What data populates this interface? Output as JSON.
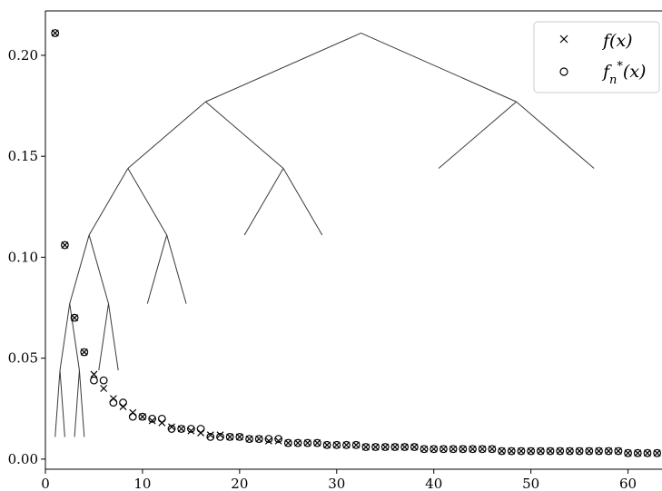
{
  "chart_data": {
    "type": "scatter",
    "title": "",
    "xlabel": "",
    "ylabel": "",
    "xlim": [
      0,
      63.5
    ],
    "ylim": [
      -0.005,
      0.222
    ],
    "xticks": [
      0,
      10,
      20,
      30,
      40,
      50,
      60
    ],
    "yticks": [
      0.0,
      0.05,
      0.1,
      0.15,
      0.2
    ],
    "xtick_labels": [
      "0",
      "10",
      "20",
      "30",
      "40",
      "50",
      "60"
    ],
    "ytick_labels": [
      "0.00",
      "0.05",
      "0.10",
      "0.15",
      "0.20"
    ],
    "grid": false,
    "legend_position": "top-right",
    "series": [
      {
        "name": "f(x)",
        "marker": "x",
        "points": [
          [
            1,
            0.211
          ],
          [
            2,
            0.106
          ],
          [
            3,
            0.07
          ],
          [
            4,
            0.053
          ],
          [
            5,
            0.042
          ],
          [
            6,
            0.035
          ],
          [
            7,
            0.03
          ],
          [
            8,
            0.026
          ],
          [
            9,
            0.023
          ],
          [
            10,
            0.021
          ],
          [
            11,
            0.019
          ],
          [
            12,
            0.018
          ],
          [
            13,
            0.016
          ],
          [
            14,
            0.015
          ],
          [
            15,
            0.014
          ],
          [
            16,
            0.013
          ],
          [
            17,
            0.012
          ],
          [
            18,
            0.012
          ],
          [
            19,
            0.011
          ],
          [
            20,
            0.011
          ],
          [
            21,
            0.01
          ],
          [
            22,
            0.01
          ],
          [
            23,
            0.009
          ],
          [
            24,
            0.009
          ],
          [
            25,
            0.008
          ],
          [
            26,
            0.008
          ],
          [
            27,
            0.008
          ],
          [
            28,
            0.008
          ],
          [
            29,
            0.007
          ],
          [
            30,
            0.007
          ],
          [
            31,
            0.007
          ],
          [
            32,
            0.007
          ],
          [
            33,
            0.006
          ],
          [
            34,
            0.006
          ],
          [
            35,
            0.006
          ],
          [
            36,
            0.006
          ],
          [
            37,
            0.006
          ],
          [
            38,
            0.006
          ],
          [
            39,
            0.005
          ],
          [
            40,
            0.005
          ],
          [
            41,
            0.005
          ],
          [
            42,
            0.005
          ],
          [
            43,
            0.005
          ],
          [
            44,
            0.005
          ],
          [
            45,
            0.005
          ],
          [
            46,
            0.005
          ],
          [
            47,
            0.004
          ],
          [
            48,
            0.004
          ],
          [
            49,
            0.004
          ],
          [
            50,
            0.004
          ],
          [
            51,
            0.004
          ],
          [
            52,
            0.004
          ],
          [
            53,
            0.004
          ],
          [
            54,
            0.004
          ],
          [
            55,
            0.004
          ],
          [
            56,
            0.004
          ],
          [
            57,
            0.004
          ],
          [
            58,
            0.004
          ],
          [
            59,
            0.004
          ],
          [
            60,
            0.003
          ],
          [
            61,
            0.003
          ],
          [
            62,
            0.003
          ],
          [
            63,
            0.003
          ]
        ]
      },
      {
        "name": "f*_n(x)",
        "marker": "o",
        "points": [
          [
            1,
            0.211
          ],
          [
            2,
            0.106
          ],
          [
            3,
            0.07
          ],
          [
            4,
            0.053
          ],
          [
            5,
            0.039
          ],
          [
            6,
            0.039
          ],
          [
            7,
            0.028
          ],
          [
            8,
            0.028
          ],
          [
            9,
            0.021
          ],
          [
            10,
            0.021
          ],
          [
            11,
            0.02
          ],
          [
            12,
            0.02
          ],
          [
            13,
            0.015
          ],
          [
            14,
            0.015
          ],
          [
            15,
            0.015
          ],
          [
            16,
            0.015
          ],
          [
            17,
            0.011
          ],
          [
            18,
            0.011
          ],
          [
            19,
            0.011
          ],
          [
            20,
            0.011
          ],
          [
            21,
            0.01
          ],
          [
            22,
            0.01
          ],
          [
            23,
            0.01
          ],
          [
            24,
            0.01
          ],
          [
            25,
            0.008
          ],
          [
            26,
            0.008
          ],
          [
            27,
            0.008
          ],
          [
            28,
            0.008
          ],
          [
            29,
            0.007
          ],
          [
            30,
            0.007
          ],
          [
            31,
            0.007
          ],
          [
            32,
            0.007
          ],
          [
            33,
            0.006
          ],
          [
            34,
            0.006
          ],
          [
            35,
            0.006
          ],
          [
            36,
            0.006
          ],
          [
            37,
            0.006
          ],
          [
            38,
            0.006
          ],
          [
            39,
            0.005
          ],
          [
            40,
            0.005
          ],
          [
            41,
            0.005
          ],
          [
            42,
            0.005
          ],
          [
            43,
            0.005
          ],
          [
            44,
            0.005
          ],
          [
            45,
            0.005
          ],
          [
            46,
            0.005
          ],
          [
            47,
            0.004
          ],
          [
            48,
            0.004
          ],
          [
            49,
            0.004
          ],
          [
            50,
            0.004
          ],
          [
            51,
            0.004
          ],
          [
            52,
            0.004
          ],
          [
            53,
            0.004
          ],
          [
            54,
            0.004
          ],
          [
            55,
            0.004
          ],
          [
            56,
            0.004
          ],
          [
            57,
            0.004
          ],
          [
            58,
            0.004
          ],
          [
            59,
            0.004
          ],
          [
            60,
            0.003
          ],
          [
            61,
            0.003
          ],
          [
            62,
            0.003
          ],
          [
            63,
            0.003
          ]
        ]
      }
    ],
    "tree_overlay": {
      "nodes": [
        {
          "id": "root",
          "x": 32.5,
          "y": 0.211
        },
        {
          "id": "a",
          "x": 16.5,
          "y": 0.177
        },
        {
          "id": "b",
          "x": 48.5,
          "y": 0.177
        },
        {
          "id": "c",
          "x": 8.5,
          "y": 0.144
        },
        {
          "id": "d",
          "x": 24.5,
          "y": 0.144
        },
        {
          "id": "e",
          "x": 4.5,
          "y": 0.111
        },
        {
          "id": "f",
          "x": 12.5,
          "y": 0.111
        },
        {
          "id": "g",
          "x": 2.5,
          "y": 0.077
        },
        {
          "id": "h",
          "x": 6.5,
          "y": 0.077
        },
        {
          "id": "i",
          "x": 1.5,
          "y": 0.044
        },
        {
          "id": "j",
          "x": 3.5,
          "y": 0.044
        },
        {
          "id": "bL",
          "x": 40.5,
          "y": 0.144
        },
        {
          "id": "bR",
          "x": 56.5,
          "y": 0.144
        },
        {
          "id": "dL",
          "x": 20.5,
          "y": 0.111
        },
        {
          "id": "dR",
          "x": 28.5,
          "y": 0.111
        },
        {
          "id": "fL",
          "x": 10.5,
          "y": 0.077
        },
        {
          "id": "fR",
          "x": 14.5,
          "y": 0.077
        },
        {
          "id": "hL",
          "x": 5.5,
          "y": 0.044
        },
        {
          "id": "hR",
          "x": 7.5,
          "y": 0.044
        },
        {
          "id": "iL",
          "x": 1,
          "y": 0.011
        },
        {
          "id": "iR",
          "x": 2,
          "y": 0.011
        },
        {
          "id": "jL",
          "x": 3,
          "y": 0.011
        },
        {
          "id": "jR",
          "x": 4,
          "y": 0.011
        }
      ],
      "edges": [
        [
          "root",
          "a"
        ],
        [
          "root",
          "b"
        ],
        [
          "a",
          "c"
        ],
        [
          "a",
          "d"
        ],
        [
          "b",
          "bL"
        ],
        [
          "b",
          "bR"
        ],
        [
          "c",
          "e"
        ],
        [
          "c",
          "f"
        ],
        [
          "d",
          "dL"
        ],
        [
          "d",
          "dR"
        ],
        [
          "e",
          "g"
        ],
        [
          "e",
          "h"
        ],
        [
          "f",
          "fL"
        ],
        [
          "f",
          "fR"
        ],
        [
          "g",
          "i"
        ],
        [
          "g",
          "j"
        ],
        [
          "h",
          "hL"
        ],
        [
          "h",
          "hR"
        ],
        [
          "i",
          "iL"
        ],
        [
          "i",
          "iR"
        ],
        [
          "j",
          "jL"
        ],
        [
          "j",
          "jR"
        ]
      ]
    }
  }
}
